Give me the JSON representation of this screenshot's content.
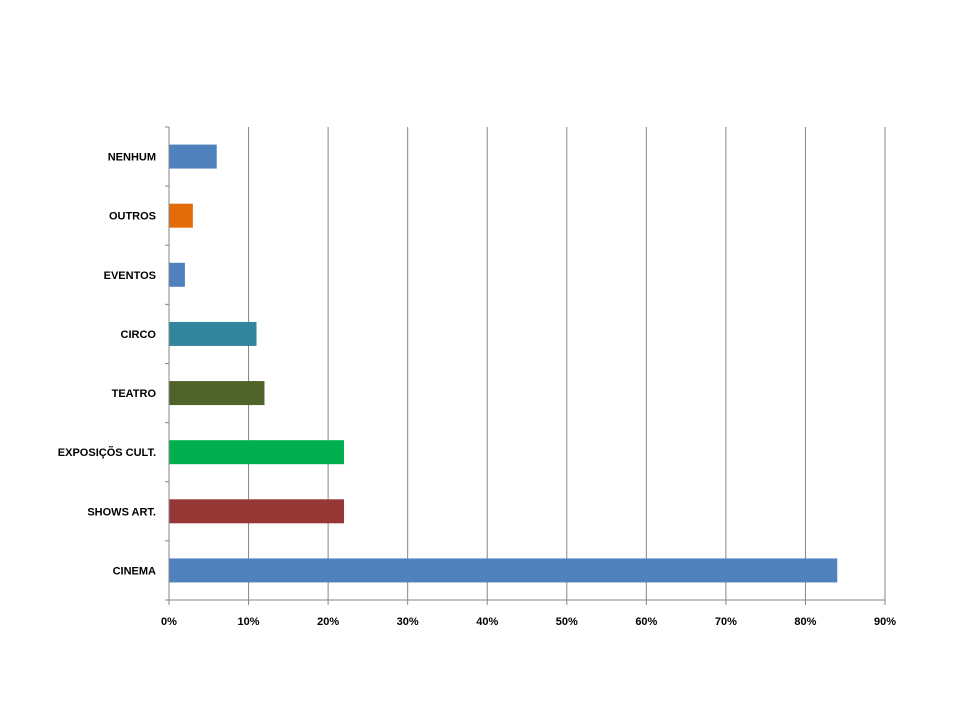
{
  "chart_data": {
    "type": "bar",
    "orientation": "horizontal",
    "categories": [
      "CINEMA",
      "SHOWS ART.",
      "EXPOSIÇÕS CULT.",
      "TEATRO",
      "CIRCO",
      "EVENTOS",
      "OUTROS",
      "NENHUM"
    ],
    "values": [
      84,
      22,
      22,
      12,
      11,
      2,
      3,
      6
    ],
    "bar_colors": [
      "#4F81BD",
      "#953735",
      "#00B050",
      "#4F6228",
      "#31859C",
      "#4F81BD",
      "#E36C09",
      "#4F81BD"
    ],
    "xlim": [
      0,
      90
    ],
    "x_ticks": [
      0,
      10,
      20,
      30,
      40,
      50,
      60,
      70,
      80,
      90
    ],
    "x_tick_labels": [
      "0%",
      "10%",
      "20%",
      "30%",
      "40%",
      "50%",
      "60%",
      "70%",
      "80%",
      "90%"
    ],
    "grid": "vertical major gridlines",
    "legend": "none",
    "title": "",
    "xlabel": "",
    "ylabel": ""
  },
  "colors": {
    "gridline": "#868686",
    "axis": "#868686"
  }
}
